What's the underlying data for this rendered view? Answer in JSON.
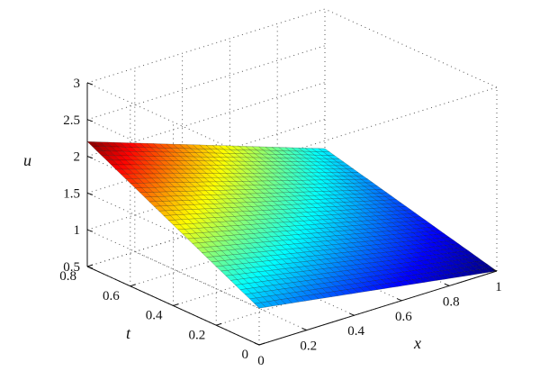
{
  "chart_data": {
    "type": "surface",
    "title": "",
    "xlabel": "x",
    "ylabel": "t",
    "zlabel": "u",
    "xlim": [
      0,
      1
    ],
    "ylim": [
      0,
      0.8
    ],
    "zlim": [
      0.5,
      3
    ],
    "x_ticks": [
      "0",
      "0.2",
      "0.4",
      "0.6",
      "0.8",
      "1"
    ],
    "y_ticks": [
      "0",
      "0.2",
      "0.4",
      "0.6",
      "0.8"
    ],
    "z_ticks": [
      "0.5",
      "1",
      "1.5",
      "2",
      "2.5",
      "3"
    ],
    "x_tick_values": [
      0,
      0.2,
      0.4,
      0.6,
      0.8,
      1
    ],
    "y_tick_values": [
      0,
      0.2,
      0.4,
      0.6,
      0.8
    ],
    "z_tick_values": [
      0.5,
      1,
      1.5,
      2,
      2.5,
      3
    ],
    "surface": {
      "x_range": [
        0,
        1
      ],
      "t_range": [
        0,
        0.8
      ],
      "corners": [
        {
          "x": 0,
          "t": 0,
          "u": 1.0
        },
        {
          "x": 1,
          "t": 0,
          "u": 0.5
        },
        {
          "x": 0,
          "t": 0.8,
          "u": 2.2
        },
        {
          "x": 1,
          "t": 0.8,
          "u": 1.1
        }
      ]
    },
    "colormap": "jet",
    "grid": true
  }
}
